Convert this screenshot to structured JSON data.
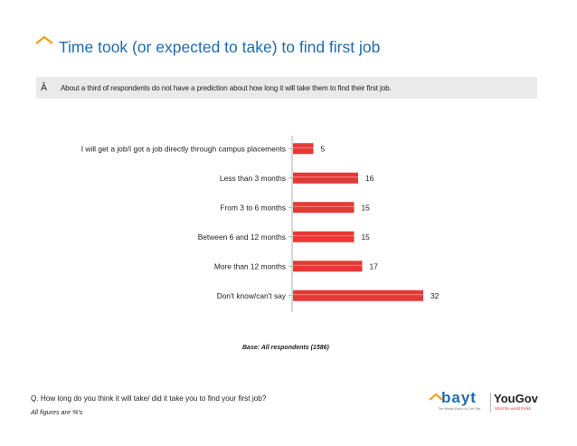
{
  "slide": {
    "title": "Time took (or expected to take) to find first job",
    "note_bullet": "Â",
    "note": "About a third of respondents do not have a prediction about how long it will take them to find their first job.",
    "base": "Base: All respondents (1586)",
    "question": "Q. How long do you think it will take/ did it take you to find your first job?",
    "figures_note": "All figures are %'s",
    "accent_color": "#1F6BB0"
  },
  "logos": {
    "bayt": "bayt",
    "bayt_tagline": "The Middle East's #1 Job Site",
    "yougov": "YouGov",
    "yougov_tagline": "What the world thinks"
  },
  "chart_data": {
    "type": "bar",
    "orientation": "horizontal",
    "categories": [
      "I will get a job/I got a job directly through campus placements",
      "Less than 3 months",
      "From 3 to 6 months",
      "Between 6 and 12 months",
      "More than 12 months",
      "Don't know/can't say"
    ],
    "values": [
      5,
      16,
      15,
      15,
      17,
      32
    ],
    "data_labels": [
      "5",
      "16",
      "15",
      "15",
      "17",
      "32"
    ],
    "xlim": [
      0,
      35
    ],
    "bar_color": "#E53935",
    "grid": false,
    "legend": "none"
  }
}
